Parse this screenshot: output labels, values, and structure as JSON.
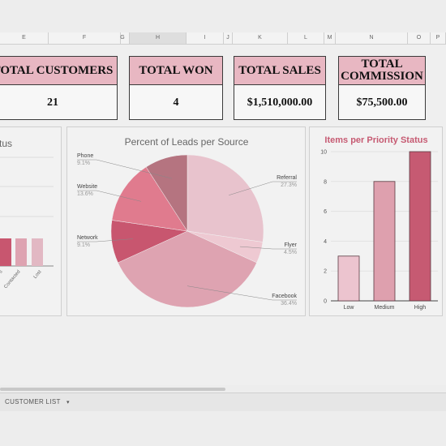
{
  "columns": [
    "E",
    "F",
    "G",
    "H",
    "I",
    "J",
    "K",
    "L",
    "M",
    "N",
    "O",
    "P"
  ],
  "kpis": [
    {
      "label": "TOTAL CUSTOMERS",
      "value": "21"
    },
    {
      "label": "TOTAL WON",
      "value": "4"
    },
    {
      "label": "TOTAL SALES",
      "value": "$1,510,000.00"
    },
    {
      "label": "TOTAL COMMISSION",
      "value": "$75,500.00"
    }
  ],
  "sheet_tab": {
    "label": "CUSTOMER LIST"
  },
  "colors": {
    "accent": "#e8b7c2",
    "bar_low": "#ecc4cf",
    "bar_medium": "#dea0ae",
    "bar_high": "#c65a72"
  },
  "chart_data": [
    {
      "type": "bar",
      "title": "...tus",
      "categories": [
        "...s",
        "Contacted",
        "Lost"
      ],
      "values": [
        null,
        null,
        null
      ]
    },
    {
      "type": "pie",
      "title": "Percent of Leads per Source",
      "slices": [
        {
          "label": "Referral",
          "pct": 27.3,
          "pct_label": "27.3%",
          "color": "#e8c3cd"
        },
        {
          "label": "Flyer",
          "pct": 4.5,
          "pct_label": "4.5%",
          "color": "#eec9d2"
        },
        {
          "label": "Facebook",
          "pct": 36.4,
          "pct_label": "36.4%",
          "color": "#dea3b1"
        },
        {
          "label": "Network",
          "pct": 9.1,
          "pct_label": "9.1%",
          "color": "#c8566f"
        },
        {
          "label": "Website",
          "pct": 13.6,
          "pct_label": "13.6%",
          "color": "#e07b8e"
        },
        {
          "label": "Phone",
          "pct": 9.1,
          "pct_label": "9.1%",
          "color": "#b57480"
        }
      ]
    },
    {
      "type": "bar",
      "title": "Items per Priority Status",
      "categories": [
        "Low",
        "Medium",
        "High"
      ],
      "values": [
        3,
        8,
        10
      ],
      "ylim": [
        0,
        10
      ],
      "yticks": [
        0,
        2,
        4,
        6,
        8,
        10
      ]
    }
  ]
}
